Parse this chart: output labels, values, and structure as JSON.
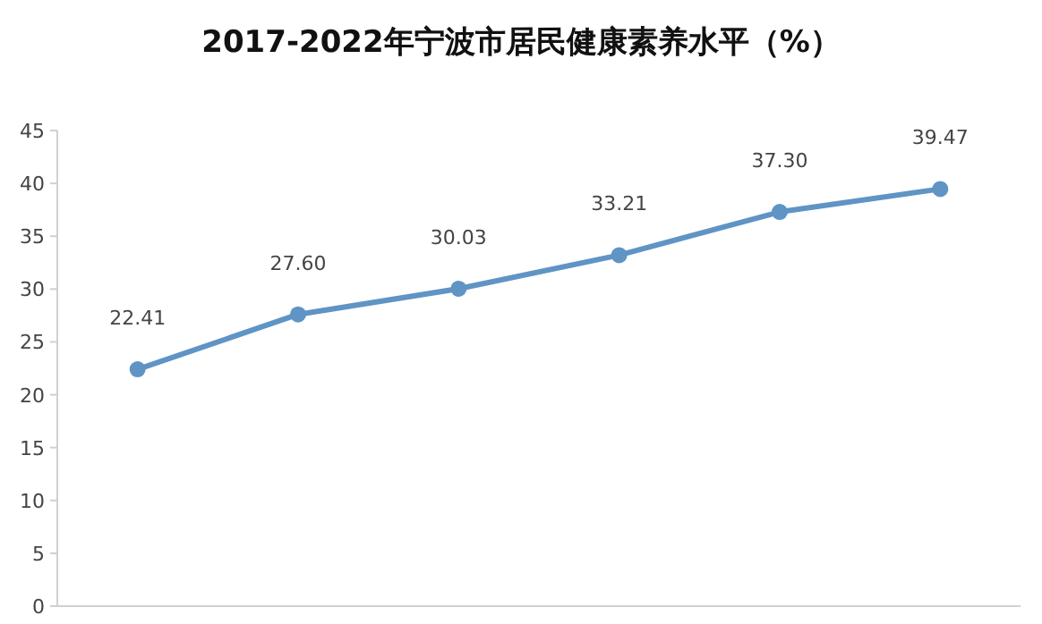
{
  "chart_data": {
    "type": "line",
    "title": "2017-2022年宁波市居民健康素养水平（%）",
    "categories": [
      null,
      null,
      null,
      null,
      null,
      null
    ],
    "values": [
      22.41,
      27.6,
      30.03,
      33.21,
      37.3,
      39.47
    ],
    "value_labels": [
      "22.41",
      "27.60",
      "30.03",
      "33.21",
      "37.30",
      "39.47"
    ],
    "color": "#5f94c5",
    "marker": "circle",
    "line_style": "solid",
    "ylim": [
      0,
      45
    ],
    "yticks": [
      0,
      5,
      10,
      15,
      20,
      25,
      30,
      35,
      40,
      45
    ]
  }
}
